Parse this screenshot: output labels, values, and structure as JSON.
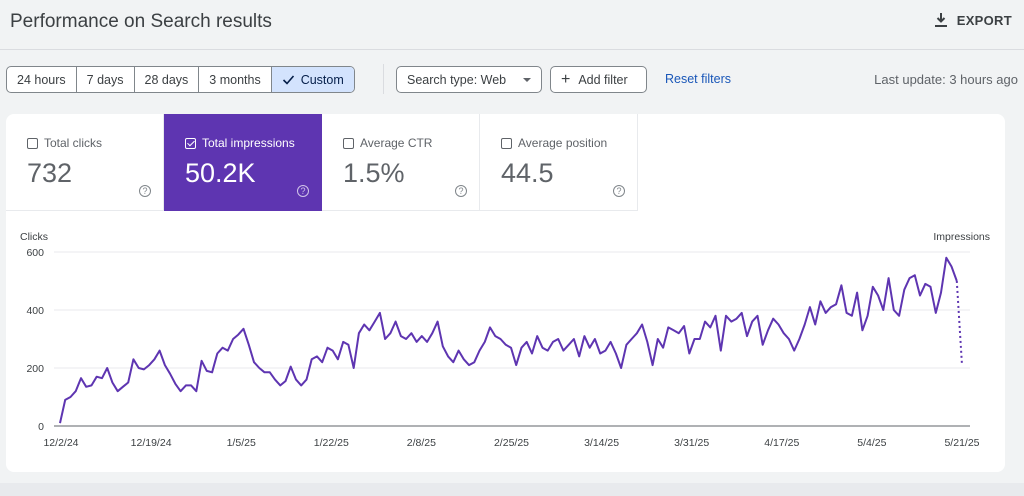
{
  "header": {
    "title": "Performance on Search results",
    "export_label": "EXPORT"
  },
  "filters": {
    "date_ranges": [
      "24 hours",
      "7 days",
      "28 days",
      "3 months",
      "Custom"
    ],
    "active_range": "Custom",
    "search_type": "Search type: Web",
    "add_filter": "Add filter",
    "reset": "Reset filters",
    "last_update": "Last update: 3 hours ago"
  },
  "metrics": [
    {
      "label": "Total clicks",
      "value": "732",
      "selected": false
    },
    {
      "label": "Total impressions",
      "value": "50.2K",
      "selected": true
    },
    {
      "label": "Average CTR",
      "value": "1.5%",
      "selected": false
    },
    {
      "label": "Average position",
      "value": "44.5",
      "selected": false
    }
  ],
  "colors": {
    "impressions": "#5e35b1",
    "active_range_bg": "#d3e3fd",
    "link": "#1a57b8"
  },
  "chart_data": {
    "type": "line",
    "left_axis_label": "Clicks",
    "right_axis_label": "Impressions",
    "y_ticks": [
      0,
      200,
      400,
      600
    ],
    "ylim": [
      0,
      600
    ],
    "x_tick_labels": [
      "12/2/24",
      "12/19/24",
      "1/5/25",
      "1/22/25",
      "2/8/25",
      "2/25/25",
      "3/14/25",
      "3/31/25",
      "4/17/25",
      "5/4/25",
      "5/21/25"
    ],
    "x_start": "12/2/24",
    "x_end": "5/22/25",
    "series": [
      {
        "name": "Impressions",
        "color": "#5e35b1",
        "values": [
          10,
          90,
          100,
          120,
          165,
          135,
          140,
          170,
          165,
          200,
          150,
          120,
          135,
          150,
          230,
          200,
          195,
          210,
          230,
          260,
          210,
          180,
          145,
          120,
          140,
          140,
          120,
          225,
          190,
          185,
          250,
          270,
          260,
          300,
          315,
          335,
          280,
          220,
          200,
          185,
          185,
          160,
          140,
          155,
          205,
          160,
          140,
          160,
          230,
          240,
          220,
          270,
          260,
          230,
          290,
          280,
          200,
          320,
          350,
          330,
          360,
          390,
          300,
          320,
          360,
          310,
          300,
          320,
          290,
          310,
          290,
          320,
          360,
          275,
          240,
          220,
          260,
          230,
          210,
          220,
          260,
          290,
          340,
          310,
          300,
          280,
          270,
          210,
          270,
          290,
          250,
          310,
          270,
          260,
          290,
          300,
          260,
          280,
          300,
          240,
          310,
          270,
          300,
          250,
          260,
          290,
          250,
          200,
          280,
          300,
          320,
          350,
          290,
          210,
          300,
          270,
          340,
          330,
          320,
          345,
          250,
          300,
          300,
          360,
          340,
          380,
          260,
          380,
          360,
          370,
          390,
          310,
          360,
          380,
          280,
          330,
          370,
          350,
          320,
          300,
          260,
          300,
          350,
          410,
          350,
          430,
          390,
          410,
          420,
          485,
          390,
          380,
          460,
          330,
          380,
          480,
          450,
          400,
          510,
          400,
          380,
          470,
          510,
          520,
          450,
          490,
          480,
          390,
          460,
          580,
          550,
          500
        ],
        "projected_tail": [
          500,
          210
        ]
      }
    ]
  }
}
